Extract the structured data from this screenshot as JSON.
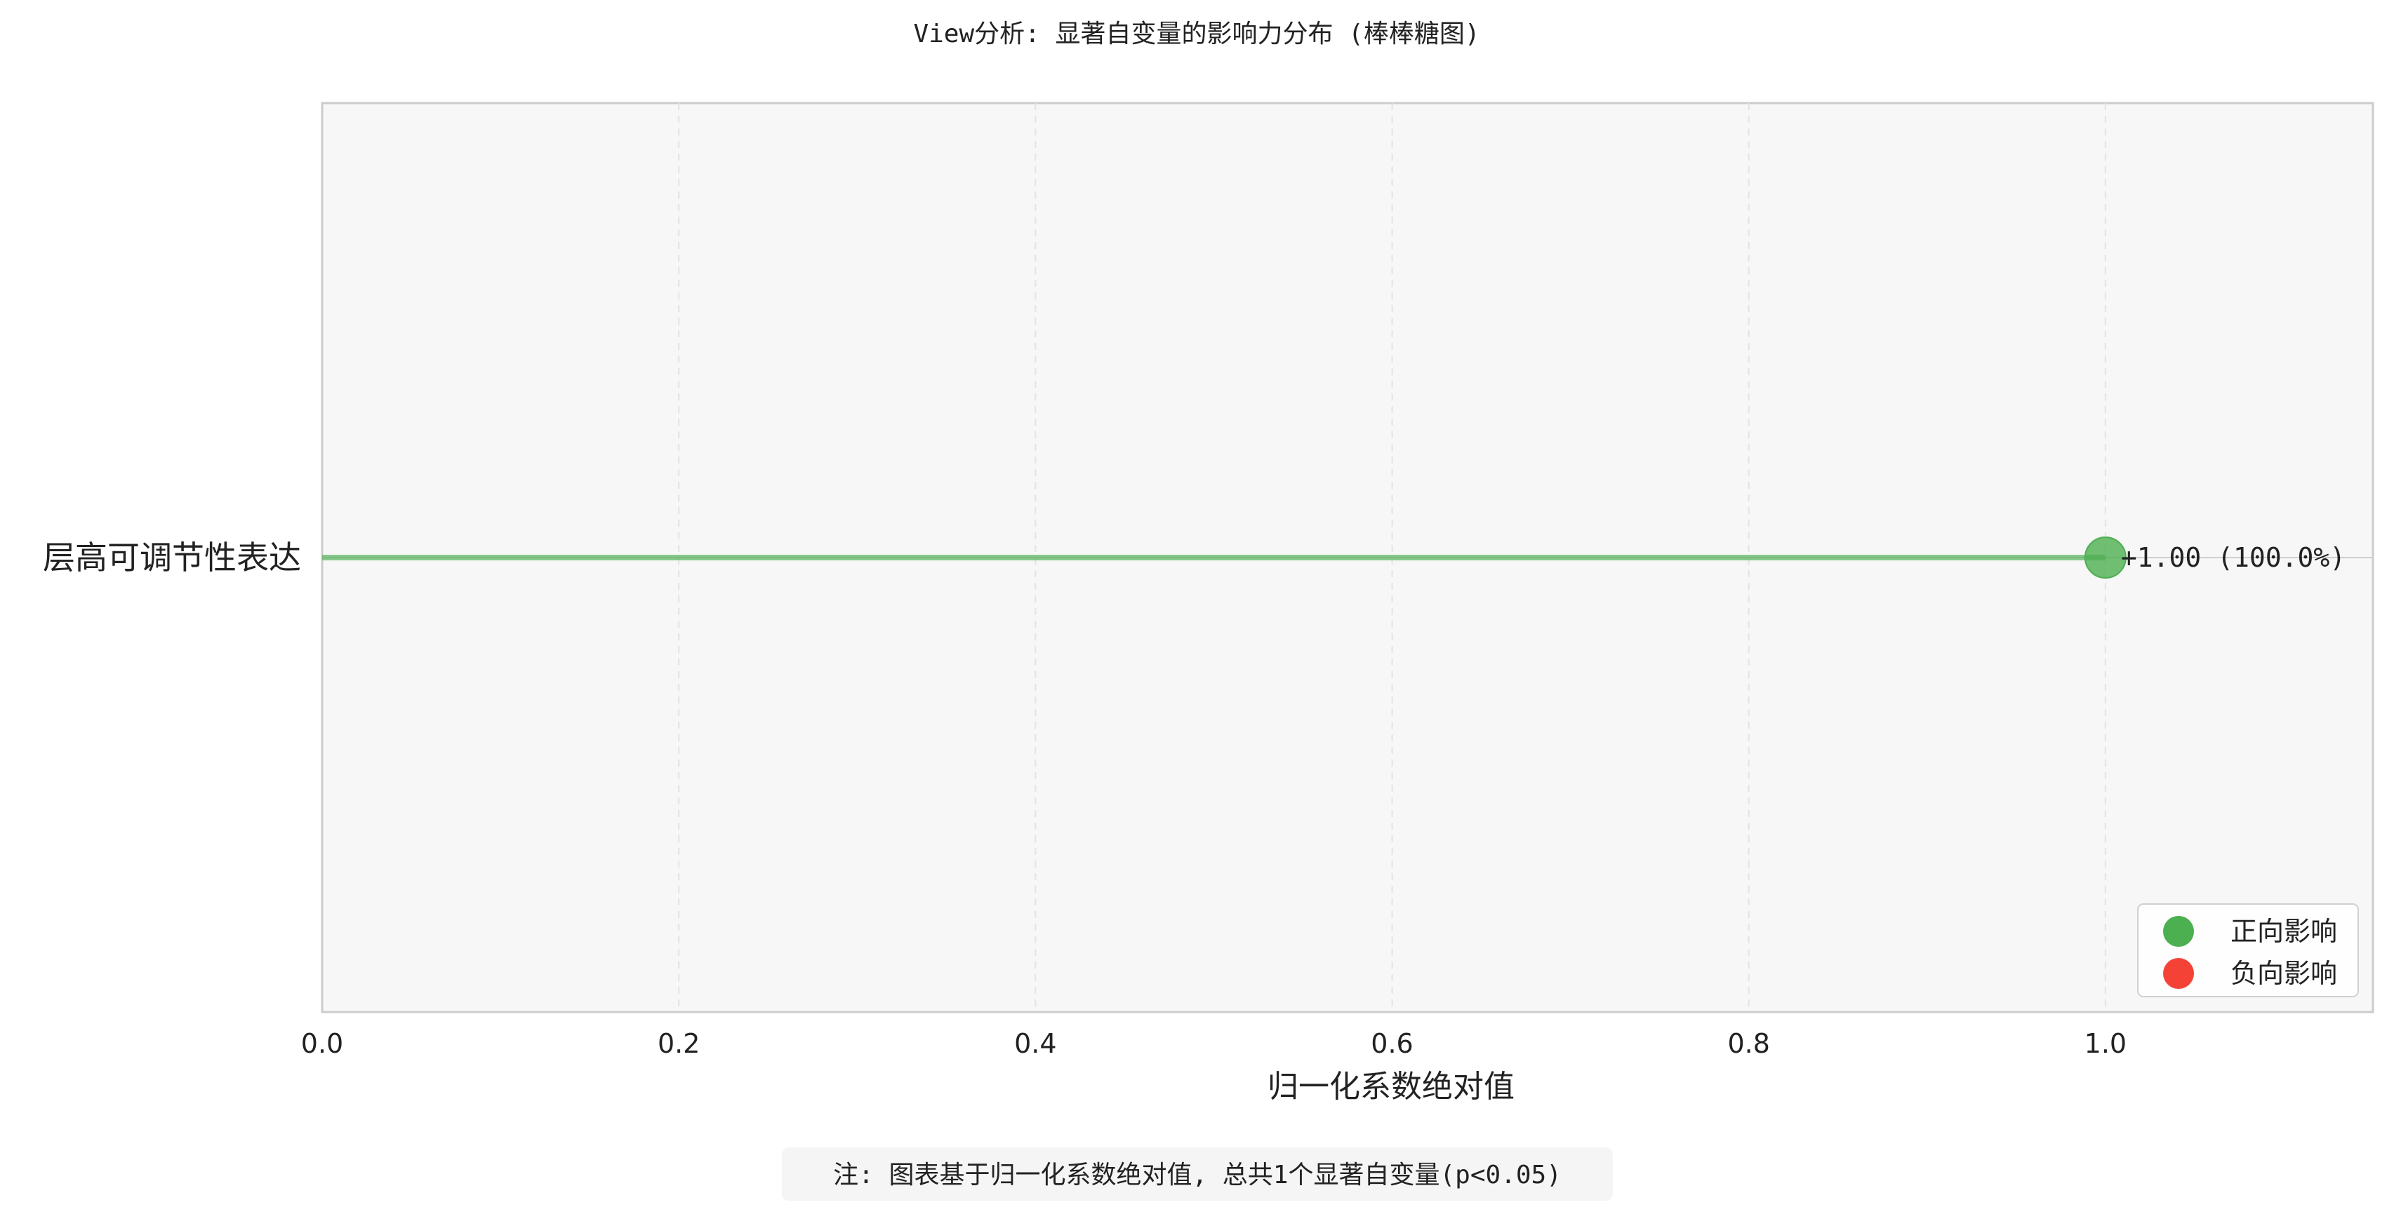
{
  "chart_data": {
    "type": "lollipop",
    "title": "View分析: 显著自变量的影响力分布 (棒棒糖图)",
    "xlabel": "归一化系数绝对值",
    "ylabel": "",
    "xlim": [
      0,
      1.15
    ],
    "xticks": [
      0.0,
      0.2,
      0.4,
      0.6,
      0.8,
      1.0
    ],
    "xtick_labels": [
      "0.0",
      "0.2",
      "0.4",
      "0.6",
      "0.8",
      "1.0"
    ],
    "grid": true,
    "points": [
      {
        "label": "层高可调节性表达",
        "value": 1.0,
        "annotation": "+1.00 (100.0%)",
        "direction": "positive"
      }
    ],
    "legend": {
      "placement": "bottom-right",
      "items": [
        {
          "label": "正向影响",
          "color": "#4caf50"
        },
        {
          "label": "负向影响",
          "color": "#f44336"
        }
      ]
    },
    "note": "注: 图表基于归一化系数绝对值, 总共1个显著自变量(p<0.05)",
    "colors": {
      "positive": "#4caf50",
      "negative": "#f44336",
      "plot_background": "#f7f7f7",
      "axis_frame": "#cccccc",
      "grid": "#e3e3e3"
    }
  }
}
